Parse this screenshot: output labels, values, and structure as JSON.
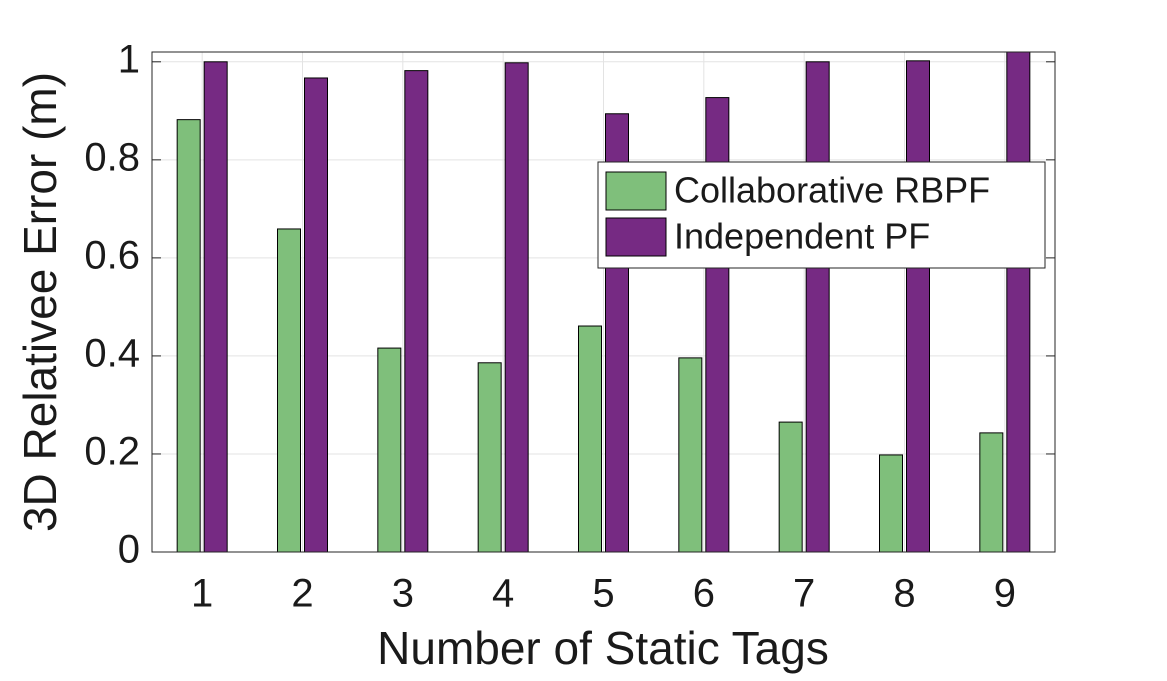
{
  "chart_data": {
    "type": "bar",
    "xlabel": "Number of Static Tags",
    "ylabel": "3D Relativee Error (m)",
    "categories": [
      "1",
      "2",
      "3",
      "4",
      "5",
      "6",
      "7",
      "8",
      "9"
    ],
    "series": [
      {
        "name": "Collaborative RBPF",
        "color": "#7fbf7b",
        "values": [
          0.882,
          0.659,
          0.416,
          0.386,
          0.461,
          0.396,
          0.265,
          0.198,
          0.243
        ]
      },
      {
        "name": "Independent PF",
        "color": "#762a83",
        "values": [
          1.0,
          0.967,
          0.982,
          0.998,
          0.894,
          0.927,
          1.0,
          1.002,
          1.02
        ]
      }
    ],
    "ylim": [
      0,
      1.02
    ],
    "yticks": [
      0,
      0.2,
      0.4,
      0.6,
      0.8,
      1
    ],
    "grid": true,
    "legend": "upper right"
  }
}
